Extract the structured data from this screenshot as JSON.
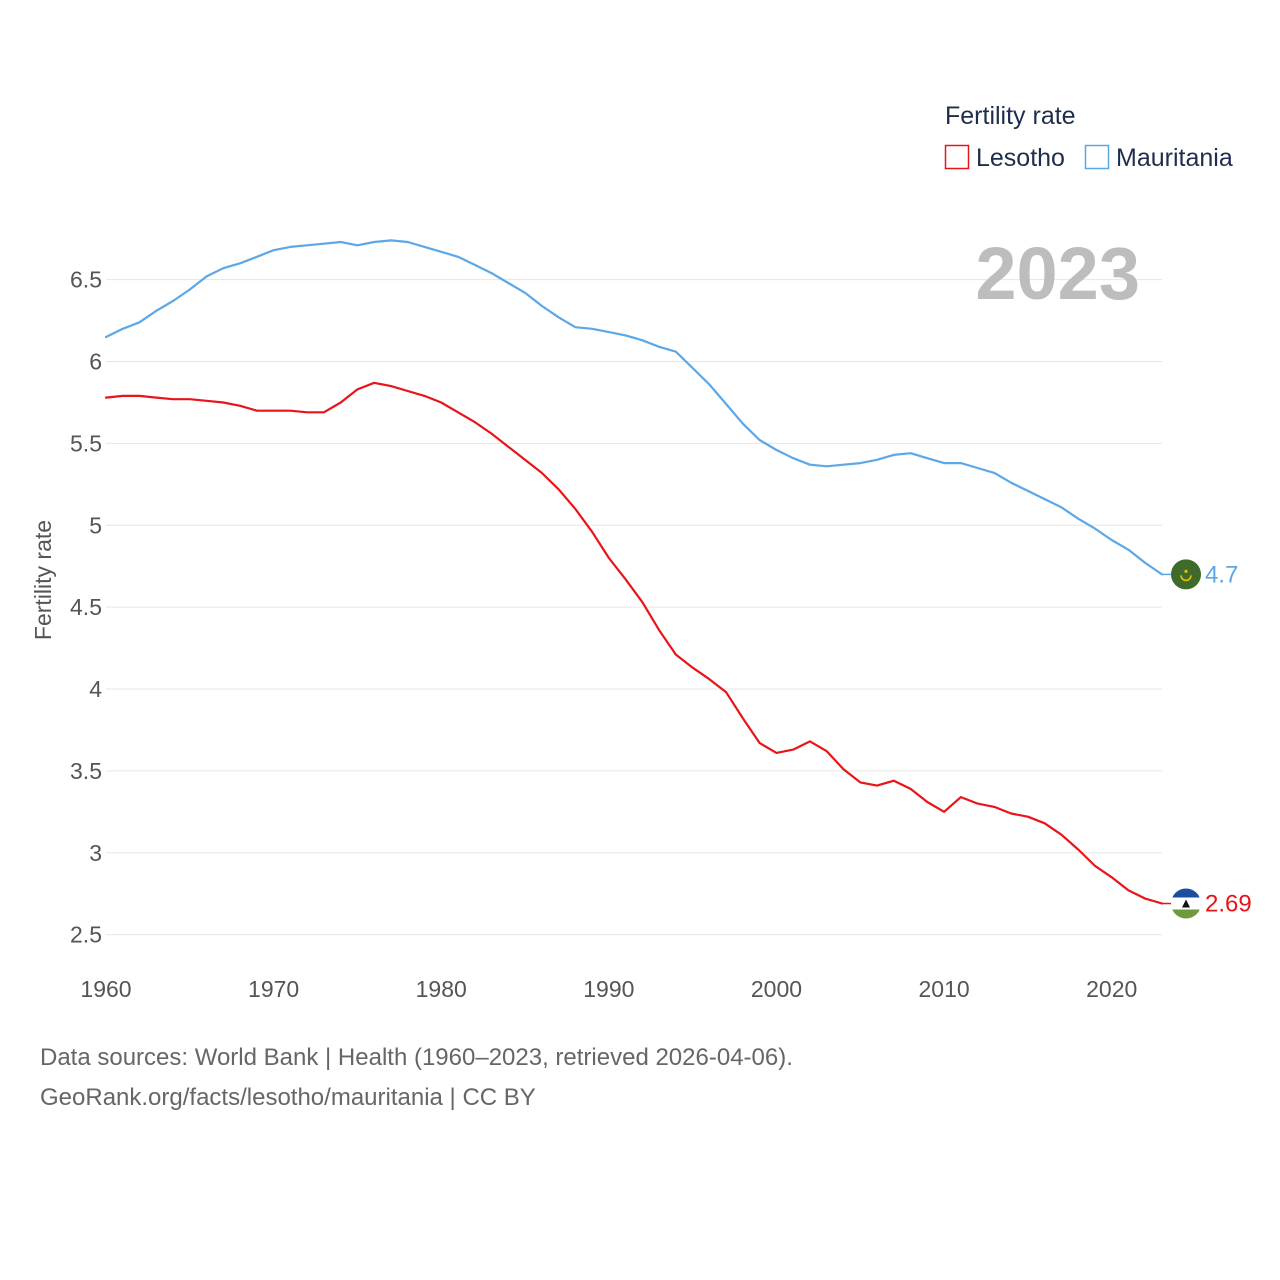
{
  "chart_data": {
    "type": "line",
    "title": "Fertility rate",
    "year_label": "2023",
    "xlabel": "",
    "ylabel": "Fertility rate",
    "xlim": [
      1960,
      2023
    ],
    "ylim": [
      2.4,
      6.95
    ],
    "yticks": [
      "2.5",
      "3",
      "3.5",
      "4",
      "4.5",
      "5",
      "5.5",
      "6",
      "6.5"
    ],
    "ytick_values": [
      2.5,
      3,
      3.5,
      4,
      4.5,
      5,
      5.5,
      6,
      6.5
    ],
    "xticks": [
      "1960",
      "1970",
      "1980",
      "1990",
      "2000",
      "2010",
      "2020"
    ],
    "xtick_values": [
      1960,
      1970,
      1980,
      1990,
      2000,
      2010,
      2020
    ],
    "legend_position": "top-right",
    "grid": true,
    "x": [
      1960,
      1961,
      1962,
      1963,
      1964,
      1965,
      1966,
      1967,
      1968,
      1969,
      1970,
      1971,
      1972,
      1973,
      1974,
      1975,
      1976,
      1977,
      1978,
      1979,
      1980,
      1981,
      1982,
      1983,
      1984,
      1985,
      1986,
      1987,
      1988,
      1989,
      1990,
      1991,
      1992,
      1993,
      1994,
      1995,
      1996,
      1997,
      1998,
      1999,
      2000,
      2001,
      2002,
      2003,
      2004,
      2005,
      2006,
      2007,
      2008,
      2009,
      2010,
      2011,
      2012,
      2013,
      2014,
      2015,
      2016,
      2017,
      2018,
      2019,
      2020,
      2021,
      2022,
      2023
    ],
    "series": [
      {
        "name": "Lesotho",
        "color": "#e8141a",
        "end_label": "2.69",
        "values": [
          5.78,
          5.79,
          5.79,
          5.78,
          5.77,
          5.77,
          5.76,
          5.75,
          5.73,
          5.7,
          5.7,
          5.7,
          5.69,
          5.69,
          5.75,
          5.83,
          5.87,
          5.85,
          5.82,
          5.79,
          5.75,
          5.69,
          5.63,
          5.56,
          5.48,
          5.4,
          5.32,
          5.22,
          5.1,
          4.96,
          4.8,
          4.67,
          4.53,
          4.36,
          4.21,
          4.13,
          4.06,
          3.98,
          3.82,
          3.67,
          3.61,
          3.63,
          3.68,
          3.62,
          3.51,
          3.43,
          3.41,
          3.44,
          3.39,
          3.31,
          3.25,
          3.34,
          3.3,
          3.28,
          3.24,
          3.22,
          3.18,
          3.11,
          3.02,
          2.92,
          2.85,
          2.77,
          2.72,
          2.69
        ]
      },
      {
        "name": "Mauritania",
        "color": "#5ca7e8",
        "end_label": "4.7",
        "values": [
          6.15,
          6.2,
          6.24,
          6.31,
          6.37,
          6.44,
          6.52,
          6.57,
          6.6,
          6.64,
          6.68,
          6.7,
          6.71,
          6.72,
          6.73,
          6.71,
          6.73,
          6.74,
          6.73,
          6.7,
          6.67,
          6.64,
          6.59,
          6.54,
          6.48,
          6.42,
          6.34,
          6.27,
          6.21,
          6.2,
          6.18,
          6.16,
          6.13,
          6.09,
          6.06,
          5.96,
          5.86,
          5.74,
          5.62,
          5.52,
          5.46,
          5.41,
          5.37,
          5.36,
          5.37,
          5.38,
          5.4,
          5.43,
          5.44,
          5.41,
          5.38,
          5.38,
          5.35,
          5.32,
          5.26,
          5.21,
          5.16,
          5.11,
          5.04,
          4.98,
          4.91,
          4.85,
          4.77,
          4.7
        ]
      }
    ]
  },
  "footer": {
    "line1": "Data sources: World Bank | Health (1960–2023, retrieved 2026-04-06).",
    "line2": "GeoRank.org/facts/lesotho/mauritania | CC BY"
  },
  "icons": {
    "lesotho_marker": "lesotho-flag-icon",
    "mauritania_marker": "mauritania-flag-icon"
  },
  "colors": {
    "lesotho_flag_blue": "#1a4fa0",
    "lesotho_flag_green": "#6e9a3c",
    "mauritania_flag_green": "#3f6a2a",
    "mauritania_flag_gold": "#e8c000"
  }
}
